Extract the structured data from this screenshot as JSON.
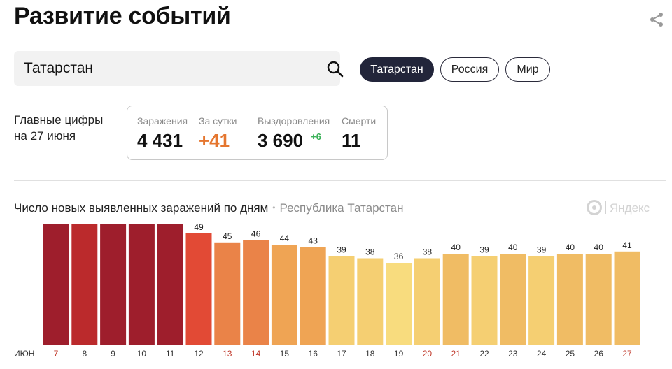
{
  "page": {
    "title": "Развитие событий"
  },
  "search": {
    "value": "Татарстан"
  },
  "region_chips": [
    {
      "label": "Татарстан",
      "active": true
    },
    {
      "label": "Россия",
      "active": false
    },
    {
      "label": "Мир",
      "active": false
    }
  ],
  "main_figures": {
    "label_line1": "Главные цифры",
    "label_line2": "на 27 июня",
    "infections_label": "Заражения",
    "infections_value": "4 431",
    "per_day_label": "За сутки",
    "per_day_value": "+41",
    "recoveries_label": "Выздоровления",
    "recoveries_value": "3 690",
    "recoveries_delta": "+6",
    "deaths_label": "Смерти",
    "deaths_value": "11"
  },
  "chart_header": {
    "title": "Число новых выявленных заражений по дням",
    "separator": "•",
    "region": "Республика Татарстан",
    "logo_text": "Яндекс"
  },
  "chart_data": {
    "type": "bar",
    "month_label": "ИЮН",
    "categories": [
      "7",
      "8",
      "9",
      "10",
      "11",
      "12",
      "13",
      "14",
      "15",
      "16",
      "17",
      "18",
      "19",
      "20",
      "21",
      "22",
      "23",
      "24",
      "25",
      "26",
      "27"
    ],
    "values": [
      54,
      53,
      54,
      55,
      54,
      49,
      45,
      46,
      44,
      43,
      39,
      38,
      36,
      38,
      40,
      39,
      40,
      39,
      40,
      40,
      41
    ],
    "weekend_categories": [
      "7",
      "13",
      "14",
      "20",
      "21",
      "27"
    ],
    "colors": {
      "very_high": "#9e1e2c",
      "high": "#bb2a2c",
      "elevated": "#e24a35",
      "medium": "#ea8348",
      "moderate": "#efa454",
      "mild": "#f0bc64",
      "low": "#f5cf72",
      "lowest": "#f8dc7e",
      "weekend_tick": "#c0392b",
      "tick": "#333333"
    }
  }
}
